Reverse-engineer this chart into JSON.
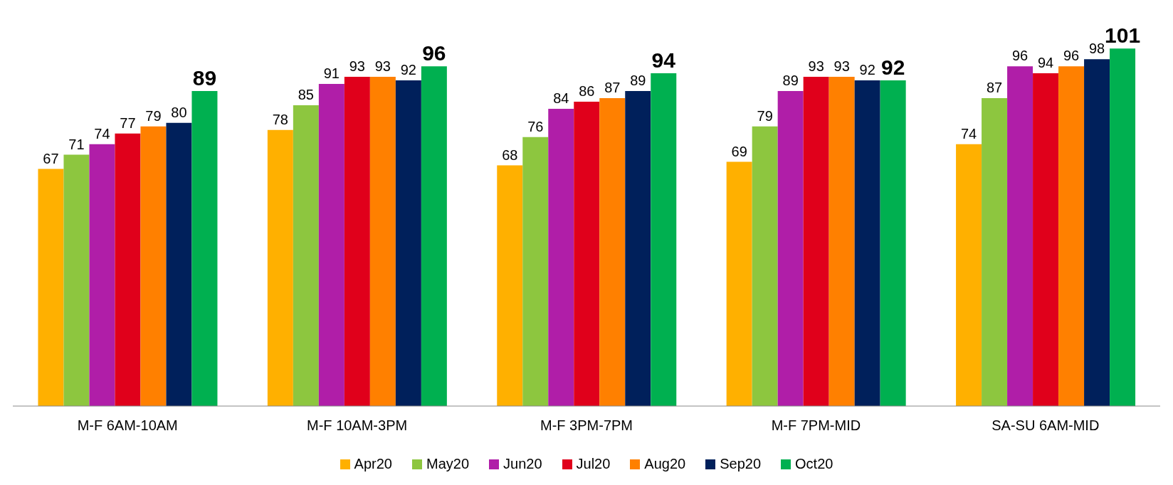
{
  "chart_data": {
    "type": "bar",
    "categories": [
      "M-F 6AM-10AM",
      "M-F 10AM-3PM",
      "M-F 3PM-7PM",
      "M-F 7PM-MID",
      "SA-SU 6AM-MID"
    ],
    "series": [
      {
        "name": "Apr20",
        "color": "#ffb000",
        "values": [
          67,
          78,
          68,
          69,
          74
        ]
      },
      {
        "name": "May20",
        "color": "#8dc63f",
        "values": [
          71,
          85,
          76,
          79,
          87
        ]
      },
      {
        "name": "Jun20",
        "color": "#b01ea8",
        "values": [
          74,
          91,
          84,
          89,
          96
        ]
      },
      {
        "name": "Jul20",
        "color": "#e0001b",
        "values": [
          77,
          93,
          86,
          93,
          94
        ]
      },
      {
        "name": "Aug20",
        "color": "#ff8000",
        "values": [
          79,
          93,
          87,
          93,
          96
        ]
      },
      {
        "name": "Sep20",
        "color": "#00205b",
        "values": [
          80,
          92,
          89,
          92,
          98
        ]
      },
      {
        "name": "Oct20",
        "color": "#00b050",
        "values": [
          89,
          96,
          94,
          92,
          101
        ]
      }
    ],
    "data_labels": true,
    "legend": "bottom",
    "grid": false
  }
}
